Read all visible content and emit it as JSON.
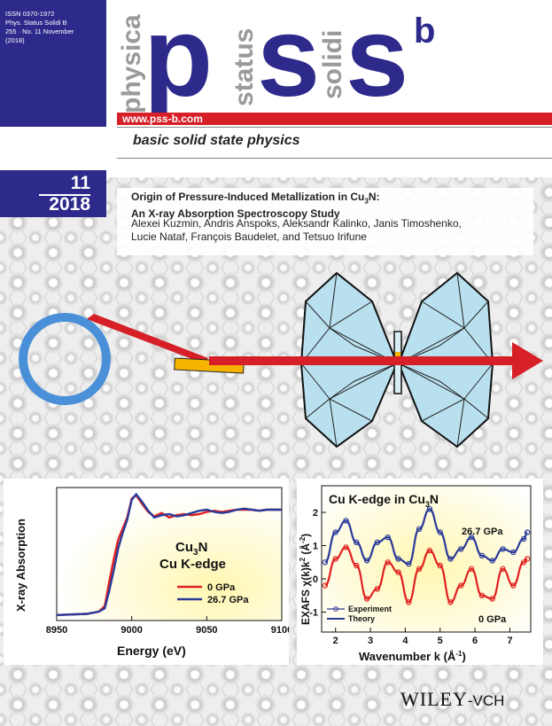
{
  "header": {
    "issn_lines": [
      "ISSN 0370-1972",
      "Phys. Status Solidi B",
      "255 · No. 11 November",
      "(2018)"
    ],
    "logo_words": [
      "physica",
      "status",
      "solidi"
    ],
    "logo_letters": "pss",
    "logo_sup": "b",
    "url": "www.pss-b.com",
    "tagline": "basic solid state physics",
    "issue_number": "11",
    "issue_year": "2018"
  },
  "article": {
    "title_line1_prefix": "Origin of Pressure-Induced Metallization in Cu",
    "title_line1_sub": "3",
    "title_line1_suffix": "N:",
    "title_line2": "An X-ray Absorption Spectroscopy Study",
    "authors_line1": "Alexei Kuzmin, Andris Anspoks, Aleksandr Kalinko, Janis Timoshenko,",
    "authors_line2": "Lucie Nataf, François Baudelet, and Tetsuo Irifune"
  },
  "publisher": {
    "name": "WILEY",
    "suffix": "-VCH"
  },
  "colors": {
    "brand_blue": "#2e2a8c",
    "accent_red": "#d61f26",
    "ring_blue": "#4a90d9",
    "diamond_fill": "#b9e0ee"
  },
  "chart_data": [
    {
      "type": "line",
      "title": "",
      "annotation_line1": "Cu",
      "annotation_sub": "3",
      "annotation_line1_suffix": "N",
      "annotation_line2": "Cu K-edge",
      "xlabel": "Energy (eV)",
      "ylabel": "X-ray Absorption",
      "xlim": [
        8950,
        9100
      ],
      "x_ticks": [
        "8950",
        "9000",
        "9050",
        "9100"
      ],
      "legend_position": "bottom-right",
      "series": [
        {
          "name": "0 GPa",
          "color": "#e02020",
          "x": [
            8950,
            8970,
            8978,
            8982,
            8985,
            8988,
            8991,
            8994,
            8997,
            9000,
            9003,
            9007,
            9011,
            9015,
            9020,
            9025,
            9030,
            9035,
            9040,
            9045,
            9050,
            9055,
            9060,
            9065,
            9070,
            9075,
            9080,
            9085,
            9090,
            9100
          ],
          "y": [
            0.0,
            0.01,
            0.03,
            0.08,
            0.3,
            0.5,
            0.68,
            0.78,
            0.88,
            1.05,
            1.08,
            1.0,
            0.93,
            0.89,
            0.92,
            0.88,
            0.9,
            0.91,
            0.9,
            0.91,
            0.93,
            0.94,
            0.93,
            0.94,
            0.95,
            0.95,
            0.95,
            0.94,
            0.95,
            0.95
          ]
        },
        {
          "name": "26.7 GPa",
          "color": "#2a3a9a",
          "x": [
            8950,
            8970,
            8978,
            8982,
            8985,
            8988,
            8991,
            8994,
            8997,
            9000,
            9003,
            9007,
            9011,
            9015,
            9020,
            9025,
            9030,
            9035,
            9040,
            9045,
            9050,
            9055,
            9060,
            9065,
            9070,
            9075,
            9080,
            9085,
            9090,
            9100
          ],
          "y": [
            0.0,
            0.01,
            0.03,
            0.06,
            0.22,
            0.4,
            0.6,
            0.74,
            0.86,
            1.04,
            1.09,
            1.02,
            0.94,
            0.88,
            0.9,
            0.91,
            0.89,
            0.9,
            0.92,
            0.94,
            0.95,
            0.93,
            0.92,
            0.93,
            0.95,
            0.96,
            0.95,
            0.94,
            0.95,
            0.95
          ]
        }
      ]
    },
    {
      "type": "scatter",
      "title_prefix": "Cu K-edge in Cu",
      "title_sub": "3",
      "title_suffix": "N",
      "xlabel": "Wavenumber k (Å",
      "xlabel_sup": "-1",
      "xlabel_suffix": ")",
      "ylabel": "EXAFS χ(k)k",
      "ylabel_sup": "2",
      "ylabel_unit": " (Å",
      "ylabel_unit_sup": "-2",
      "ylabel_suffix": ")",
      "xlim": [
        1.6,
        7.6
      ],
      "ylim": [
        -1.6,
        2.8
      ],
      "x_ticks": [
        "2",
        "3",
        "4",
        "5",
        "6",
        "7"
      ],
      "y_ticks": [
        "-1",
        "0",
        "1",
        "2"
      ],
      "labels": [
        "26.7 GPa",
        "0 GPa"
      ],
      "legend": [
        "Experiment",
        "Theory"
      ],
      "legend_position": "bottom-left",
      "series": [
        {
          "name": "26.7 GPa",
          "color": "#2a3a9a",
          "x": [
            1.7,
            2.0,
            2.3,
            2.6,
            2.9,
            3.2,
            3.5,
            3.8,
            4.1,
            4.4,
            4.7,
            5.0,
            5.3,
            5.6,
            5.9,
            6.2,
            6.5,
            6.8,
            7.1,
            7.4,
            7.5
          ],
          "y": [
            0.5,
            1.4,
            1.75,
            1.1,
            0.55,
            1.1,
            1.25,
            0.6,
            0.45,
            1.5,
            2.1,
            1.4,
            0.6,
            0.9,
            1.25,
            0.7,
            0.55,
            0.9,
            0.8,
            1.2,
            1.4
          ]
        },
        {
          "name": "0 GPa",
          "color": "#e02020",
          "x": [
            1.7,
            2.0,
            2.3,
            2.6,
            2.9,
            3.2,
            3.5,
            3.8,
            4.1,
            4.4,
            4.7,
            5.0,
            5.3,
            5.6,
            5.9,
            6.2,
            6.5,
            6.8,
            7.1,
            7.4,
            7.5
          ],
          "y": [
            -0.2,
            0.6,
            0.95,
            0.4,
            -0.6,
            -0.3,
            0.5,
            0.2,
            -0.7,
            0.3,
            0.85,
            0.4,
            -0.7,
            -0.2,
            0.3,
            -0.5,
            -0.6,
            0.3,
            -0.2,
            0.5,
            0.6
          ]
        }
      ]
    }
  ]
}
